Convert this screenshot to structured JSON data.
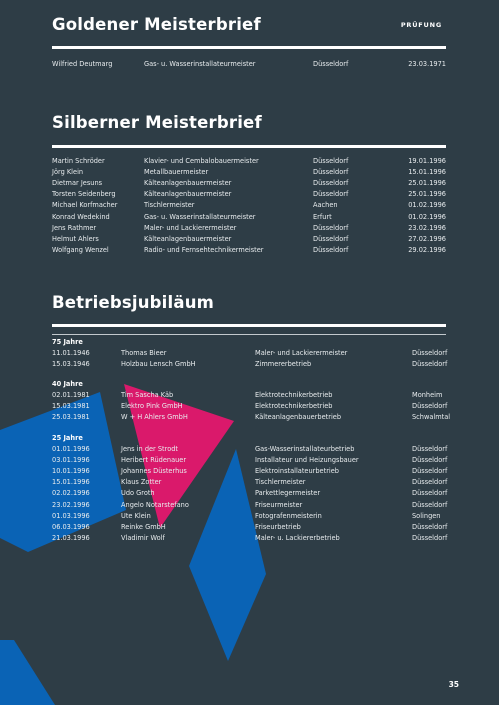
{
  "top_label": "PRÜFUNG",
  "page_number": "35",
  "gold": {
    "title": "Goldener Meisterbrief",
    "rows": [
      {
        "name": "Wilfried Deutmarg",
        "trade": "Gas- u. Wasserinstallateurmeister",
        "city": "Düsseldorf",
        "date": "23.03.1971"
      }
    ]
  },
  "silver": {
    "title": "Silberner Meisterbrief",
    "rows": [
      {
        "name": "Martin Schröder",
        "trade": "Klavier- und Cembalobauermeister",
        "city": "Düsseldorf",
        "date": "19.01.1996"
      },
      {
        "name": "Jörg Klein",
        "trade": "Metallbauermeister",
        "city": "Düsseldorf",
        "date": "15.01.1996"
      },
      {
        "name": "Dietmar Jesuns",
        "trade": "Kälteanlagenbauermeister",
        "city": "Düsseldorf",
        "date": "25.01.1996"
      },
      {
        "name": "Torsten Seidenberg",
        "trade": "Kälteanlagenbauermeister",
        "city": "Düsseldorf",
        "date": "25.01.1996"
      },
      {
        "name": "Michael Korfmacher",
        "trade": "Tischlermeister",
        "city": "Aachen",
        "date": "01.02.1996"
      },
      {
        "name": "Konrad Wedekind",
        "trade": "Gas- u. Wasserinstallateurmeister",
        "city": "Erfurt",
        "date": "01.02.1996"
      },
      {
        "name": "Jens Rathmer",
        "trade": "Maler- und Lackierermeister",
        "city": "Düsseldorf",
        "date": "23.02.1996"
      },
      {
        "name": "Helmut Ahlers",
        "trade": "Kälteanlagenbauermeister",
        "city": "Düsseldorf",
        "date": "27.02.1996"
      },
      {
        "name": "Wolfgang Wenzel",
        "trade": "Radio- und Fernsehtechnikermeister",
        "city": "Düsseldorf",
        "date": "29.02.1996"
      }
    ]
  },
  "jubilee": {
    "title": "Betriebsjubiläum",
    "groups": [
      {
        "heading": "75 Jahre",
        "rows": [
          {
            "date": "11.01.1946",
            "name": "Thomas Bieer",
            "trade": "Maler- und Lackierermeister",
            "city": "Düsseldorf"
          },
          {
            "date": "15.03.1946",
            "name": "Holzbau Lensch GmbH",
            "trade": "Zimmererbetrieb",
            "city": "Düsseldorf"
          }
        ]
      },
      {
        "heading": "40 Jahre",
        "rows": [
          {
            "date": "02.01.1981",
            "name": "Tim Sascha Käb",
            "trade": "Elektrotechnikerbetrieb",
            "city": "Monheim"
          },
          {
            "date": "15.03.1981",
            "name": "Elektro Pink GmbH",
            "trade": "Elektrotechnikerbetrieb",
            "city": "Düsseldorf"
          },
          {
            "date": "25.03.1981",
            "name": "W + H Ahlers GmbH",
            "trade": "Kälteanlagenbauerbetrieb",
            "city": "Schwalmtal"
          }
        ]
      },
      {
        "heading": "25 Jahre",
        "rows": [
          {
            "date": "01.01.1996",
            "name": "Jens in der Strodt",
            "trade": "Gas-Wasserinstallateurbetrieb",
            "city": "Düsseldorf"
          },
          {
            "date": "03.01.1996",
            "name": "Heribert Rüdenauer",
            "trade": "Installateur und Heizungsbauer",
            "city": "Düsseldorf"
          },
          {
            "date": "10.01.1996",
            "name": "Johannes Düsterhus",
            "trade": "Elektroinstallateurbetrieb",
            "city": "Düsseldorf"
          },
          {
            "date": "15.01.1996",
            "name": "Klaus Zotter",
            "trade": "Tischlermeister",
            "city": "Düsseldorf"
          },
          {
            "date": "02.02.1996",
            "name": "Udo Groth",
            "trade": "Parkettlegermeister",
            "city": "Düsseldorf"
          },
          {
            "date": "23.02.1996",
            "name": "Angelo Notarstefano",
            "trade": "Friseurmeister",
            "city": "Düsseldorf"
          },
          {
            "date": "01.03.1996",
            "name": "Ute Klein",
            "trade": "Fotografenmeisterin",
            "city": "Solingen"
          },
          {
            "date": "06.03.1996",
            "name": "Reinke GmbH",
            "trade": "Friseurbetrieb",
            "city": "Düsseldorf"
          },
          {
            "date": "21.03.1996",
            "name": "Vladimir Wolf",
            "trade": "Maler- u. Lackiererbetrieb",
            "city": "Düsseldorf"
          }
        ]
      }
    ]
  },
  "colors": {
    "background": "#2e3d46",
    "blue": "#0a63b5",
    "pink": "#e4176e",
    "text": "#ffffff"
  }
}
